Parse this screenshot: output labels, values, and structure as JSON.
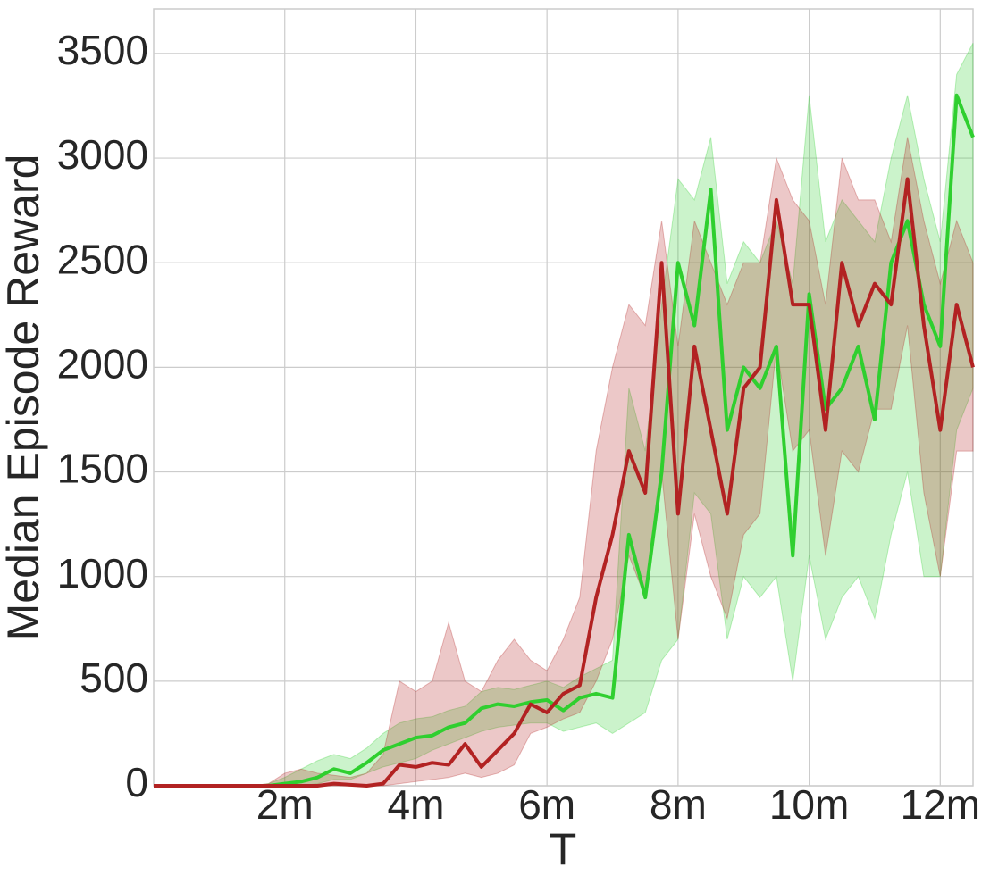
{
  "chart_data": {
    "type": "line",
    "xlabel": "T",
    "ylabel": "Median Episode Reward",
    "x": [
      0,
      0.25,
      0.5,
      0.75,
      1,
      1.25,
      1.5,
      1.75,
      2,
      2.25,
      2.5,
      2.75,
      3,
      3.25,
      3.5,
      3.75,
      4,
      4.25,
      4.5,
      4.75,
      5,
      5.25,
      5.5,
      5.75,
      6,
      6.25,
      6.5,
      6.75,
      7,
      7.25,
      7.5,
      7.75,
      8,
      8.25,
      8.5,
      8.75,
      9,
      9.25,
      9.5,
      9.75,
      10,
      10.25,
      10.5,
      10.75,
      11,
      11.25,
      11.5,
      11.75,
      12,
      12.25,
      12.5
    ],
    "xlim": [
      0,
      12.5
    ],
    "xticks": [
      {
        "value": 2,
        "label": "2m"
      },
      {
        "value": 4,
        "label": "4m"
      },
      {
        "value": 6,
        "label": "6m"
      },
      {
        "value": 8,
        "label": "8m"
      },
      {
        "value": 10,
        "label": "10m"
      },
      {
        "value": 12,
        "label": "12m"
      }
    ],
    "ylim": [
      0,
      3713
    ],
    "yticks": [
      0,
      500,
      1000,
      1500,
      2000,
      2500,
      3000,
      3500
    ],
    "grid": true,
    "series": [
      {
        "color": "#2fcf2f",
        "values": [
          0,
          0,
          0,
          0,
          0,
          0,
          0,
          0,
          10,
          20,
          40,
          80,
          60,
          110,
          170,
          200,
          230,
          240,
          280,
          300,
          370,
          390,
          380,
          400,
          410,
          360,
          420,
          440,
          420,
          1200,
          900,
          1500,
          2500,
          2200,
          2850,
          1700,
          2000,
          1900,
          2100,
          1100,
          2350,
          1800,
          1900,
          2100,
          1750,
          2500,
          2700,
          2300,
          2100,
          3300,
          3100
        ],
        "lower": [
          0,
          0,
          0,
          0,
          0,
          0,
          0,
          0,
          0,
          0,
          10,
          30,
          30,
          60,
          90,
          110,
          130,
          170,
          200,
          230,
          260,
          280,
          290,
          300,
          300,
          260,
          280,
          300,
          250,
          300,
          350,
          600,
          700,
          1400,
          1300,
          700,
          1000,
          900,
          1000,
          500,
          1100,
          700,
          900,
          1000,
          800,
          1200,
          1500,
          1000,
          1000,
          1700,
          1900
        ],
        "upper": [
          0,
          0,
          0,
          0,
          0,
          0,
          0,
          10,
          40,
          80,
          120,
          150,
          130,
          180,
          250,
          300,
          320,
          330,
          360,
          380,
          450,
          470,
          460,
          480,
          500,
          470,
          520,
          560,
          600,
          1900,
          1600,
          2300,
          2900,
          2800,
          3100,
          2400,
          2600,
          2500,
          2700,
          2400,
          3300,
          2600,
          2800,
          2700,
          2600,
          3000,
          3300,
          2900,
          2600,
          3400,
          3550
        ]
      },
      {
        "color": "#b22222",
        "values": [
          0,
          0,
          0,
          0,
          0,
          0,
          0,
          0,
          0,
          0,
          0,
          10,
          5,
          0,
          10,
          100,
          90,
          110,
          100,
          200,
          90,
          170,
          250,
          390,
          350,
          440,
          480,
          900,
          1200,
          1600,
          1400,
          2500,
          1300,
          2100,
          1700,
          1300,
          1900,
          2000,
          2800,
          2300,
          2300,
          1700,
          2500,
          2200,
          2400,
          2300,
          2900,
          2200,
          1700,
          2300,
          2000
        ],
        "lower": [
          0,
          0,
          0,
          0,
          0,
          0,
          0,
          0,
          0,
          0,
          0,
          0,
          0,
          0,
          0,
          10,
          20,
          30,
          40,
          60,
          40,
          60,
          100,
          250,
          280,
          320,
          350,
          500,
          700,
          1100,
          900,
          1500,
          700,
          1300,
          1000,
          800,
          1200,
          1300,
          2100,
          1600,
          1700,
          1100,
          1600,
          1500,
          1800,
          1800,
          2200,
          1400,
          1000,
          1600,
          1600
        ],
        "upper": [
          0,
          0,
          0,
          0,
          0,
          0,
          0,
          10,
          60,
          80,
          60,
          50,
          40,
          60,
          150,
          500,
          450,
          500,
          780,
          500,
          450,
          600,
          700,
          600,
          550,
          700,
          900,
          1600,
          2000,
          2300,
          2200,
          2700,
          2100,
          2700,
          2500,
          2300,
          2500,
          2500,
          3000,
          2800,
          2700,
          2300,
          3000,
          2800,
          2800,
          2600,
          3100,
          2700,
          2400,
          2700,
          2500
        ]
      }
    ]
  }
}
